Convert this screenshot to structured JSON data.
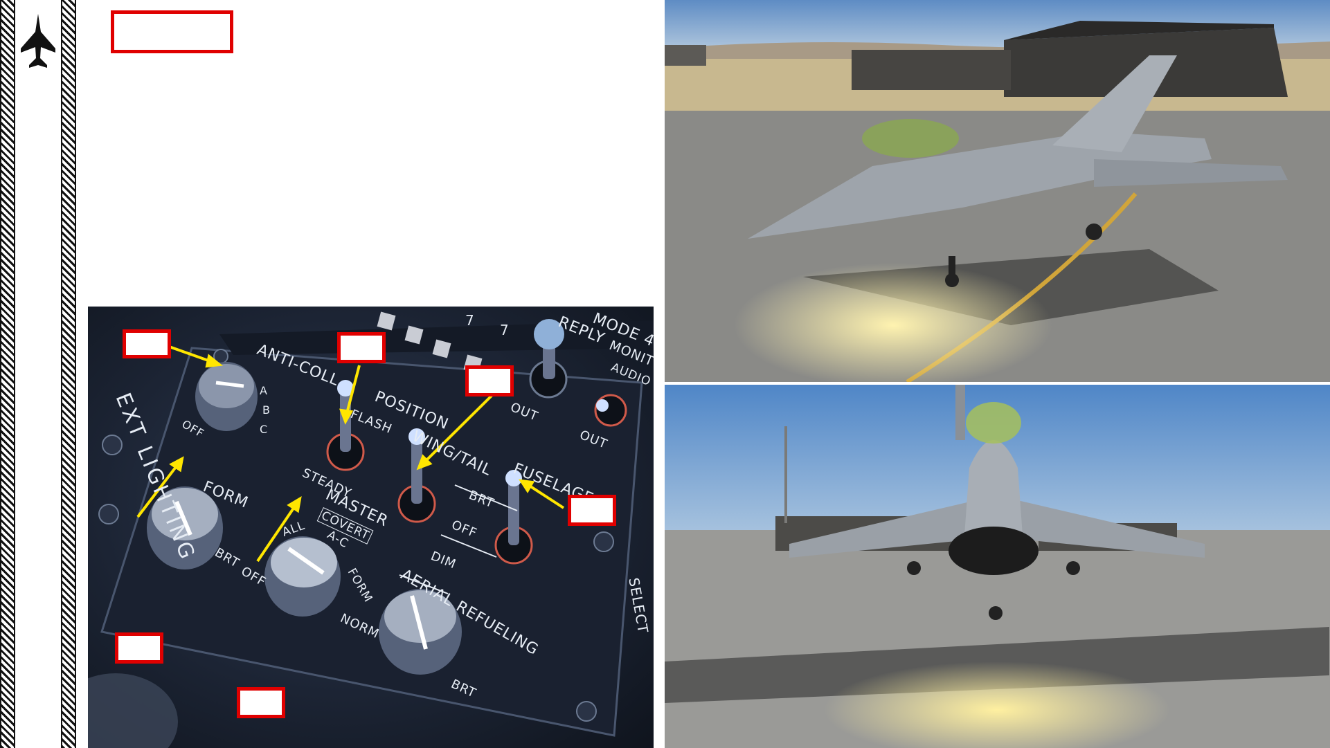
{
  "panel": {
    "labels": {
      "anti_coll": "ANTI-COLL",
      "position": "POSITION",
      "flash": "FLASH",
      "steady": "STEADY",
      "wing_tail": "WING/TAIL",
      "fuselage": "FUSELAGE",
      "brt1": "BRT",
      "off1": "OFF",
      "dim": "DIM",
      "form": "FORM",
      "brt2": "BRT",
      "off2": "OFF",
      "master": "MASTER",
      "covert": "COVERT",
      "all": "ALL",
      "ac": "A-C",
      "form_plus": "FORM",
      "norm": "NORM",
      "aerial_refueling": "AERIAL REFUELING",
      "brt3": "BRT",
      "exterior_lighting": "EXT LIGHTING",
      "off_anti": "OFF",
      "a": "A",
      "b": "B",
      "c": "C",
      "reply": "REPLY",
      "mode4": "MODE 4",
      "monitor": "MONITOR",
      "audio": "AUDIO",
      "out1": "OUT",
      "out2": "OUT",
      "select": "SELECT",
      "seven1": "7",
      "seven2": "7"
    }
  },
  "colors": {
    "callout_border": "#e00000",
    "arrow": "#ffe600"
  },
  "icons": {
    "jet": "fighter-jet-icon"
  }
}
